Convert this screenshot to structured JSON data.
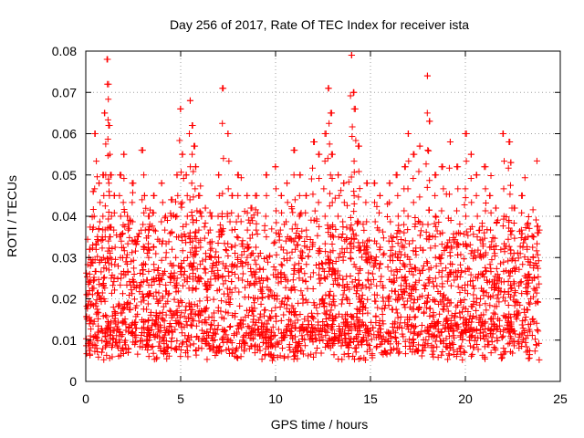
{
  "chart_data": {
    "type": "scatter",
    "title": "Day 256 of 2017, Rate Of TEC Index for receiver ista",
    "xlabel": "GPS time / hours",
    "ylabel": "ROTI / TECUs",
    "xlim": [
      0,
      25
    ],
    "ylim": [
      0,
      0.08
    ],
    "xticks": [
      "0",
      "5",
      "10",
      "15",
      "20",
      "25"
    ],
    "yticks": [
      "0",
      "0.01",
      "0.02",
      "0.03",
      "0.04",
      "0.05",
      "0.06",
      "0.07",
      "0.08"
    ],
    "grid": true,
    "marker": "plus",
    "color": "#ff0000",
    "series": [
      {
        "name": "ROTI",
        "description": "dense scatter, approx 0.004-0.03 baseline with spikes",
        "x": [
          0.2,
          0.4,
          0.5,
          0.7,
          0.9,
          1.0,
          1.15,
          1.2,
          1.25,
          1.3,
          1.5,
          1.8,
          2.0,
          2.2,
          2.5,
          3.0,
          3.1,
          3.3,
          3.6,
          4.0,
          4.2,
          4.5,
          4.8,
          5.0,
          5.1,
          5.3,
          5.5,
          5.6,
          5.7,
          5.8,
          6.0,
          6.3,
          6.6,
          7.0,
          7.2,
          7.5,
          7.7,
          8.0,
          8.5,
          8.7,
          9.0,
          9.5,
          10.0,
          10.3,
          10.6,
          11.0,
          11.3,
          11.6,
          12.0,
          12.3,
          12.6,
          12.8,
          12.9,
          13.0,
          13.3,
          13.6,
          14.0,
          14.1,
          14.2,
          14.4,
          14.8,
          15.2,
          15.5,
          16.0,
          16.4,
          16.8,
          17.0,
          17.3,
          17.6,
          18.0,
          18.1,
          18.4,
          18.8,
          19.2,
          19.6,
          20.0,
          20.3,
          20.6,
          21.0,
          21.3,
          21.6,
          22.0,
          22.3,
          22.4,
          22.6,
          23.0,
          23.3,
          23.6,
          23.8
        ],
        "y": [
          0.032,
          0.046,
          0.06,
          0.048,
          0.05,
          0.065,
          0.078,
          0.072,
          0.062,
          0.05,
          0.045,
          0.05,
          0.055,
          0.04,
          0.048,
          0.056,
          0.045,
          0.04,
          0.045,
          0.048,
          0.04,
          0.044,
          0.05,
          0.066,
          0.055,
          0.05,
          0.068,
          0.062,
          0.057,
          0.052,
          0.045,
          0.042,
          0.04,
          0.05,
          0.071,
          0.06,
          0.045,
          0.05,
          0.045,
          0.042,
          0.045,
          0.05,
          0.052,
          0.045,
          0.048,
          0.056,
          0.05,
          0.045,
          0.058,
          0.055,
          0.06,
          0.071,
          0.065,
          0.055,
          0.05,
          0.048,
          0.079,
          0.07,
          0.066,
          0.057,
          0.048,
          0.048,
          0.045,
          0.048,
          0.05,
          0.052,
          0.06,
          0.055,
          0.057,
          0.074,
          0.063,
          0.05,
          0.052,
          0.058,
          0.052,
          0.06,
          0.055,
          0.05,
          0.052,
          0.045,
          0.042,
          0.06,
          0.058,
          0.053,
          0.042,
          0.045,
          0.038,
          0.035,
          0.036
        ]
      }
    ]
  }
}
